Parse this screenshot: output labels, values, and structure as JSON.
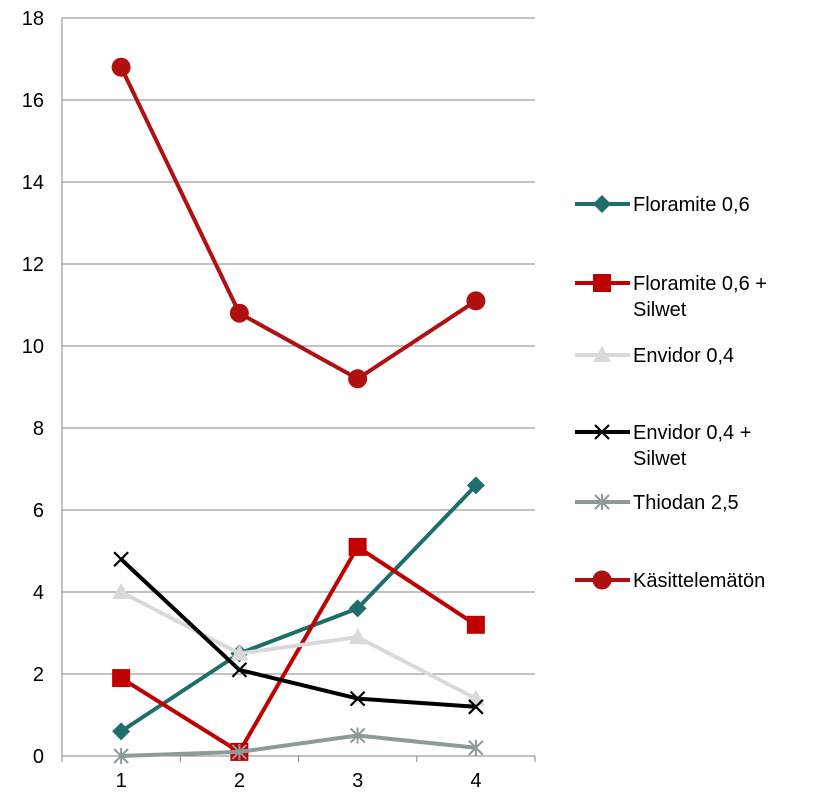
{
  "chart_data": {
    "type": "line",
    "title": "",
    "xlabel": "",
    "ylabel": "",
    "x": [
      1,
      2,
      3,
      4
    ],
    "x_tick_labels": [
      "1",
      "2",
      "3",
      "4"
    ],
    "ylim": [
      0,
      18
    ],
    "y_ticks": [
      0,
      2,
      4,
      6,
      8,
      10,
      12,
      14,
      16,
      18
    ],
    "y_tick_labels": [
      "0",
      "2",
      "4",
      "6",
      "8",
      "10",
      "12",
      "14",
      "16",
      "18"
    ],
    "grid": "horizontal",
    "legend_position": "right",
    "series": [
      {
        "name": "Floramite 0,6",
        "name_lines": [
          "Floramite 0,6"
        ],
        "values": [
          0.6,
          2.5,
          3.6,
          6.6
        ],
        "color": "#1f6e6a",
        "marker": "diamond"
      },
      {
        "name": "Floramite 0,6 + Silwet",
        "name_lines": [
          "Floramite 0,6 +",
          "Silwet"
        ],
        "values": [
          1.9,
          0.1,
          5.1,
          3.2
        ],
        "color": "#c00000",
        "marker": "square"
      },
      {
        "name": "Envidor 0,4",
        "name_lines": [
          "Envidor 0,4"
        ],
        "values": [
          4.0,
          2.5,
          2.9,
          1.4
        ],
        "color": "#d9d9d9",
        "marker": "triangle"
      },
      {
        "name": "Envidor 0,4 + Silwet",
        "name_lines": [
          "Envidor 0,4 +",
          "Silwet"
        ],
        "values": [
          4.8,
          2.1,
          1.4,
          1.2
        ],
        "color": "#000000",
        "marker": "x"
      },
      {
        "name": "Thiodan 2,5",
        "name_lines": [
          "Thiodan 2,5"
        ],
        "values": [
          0.0,
          0.1,
          0.5,
          0.2
        ],
        "color": "#8c9a9a",
        "marker": "star"
      },
      {
        "name": "Käsittelemätön",
        "name_lines": [
          "Käsittelemätön"
        ],
        "values": [
          16.8,
          10.8,
          9.2,
          11.1
        ],
        "color": "#b01010",
        "marker": "circle"
      }
    ]
  }
}
